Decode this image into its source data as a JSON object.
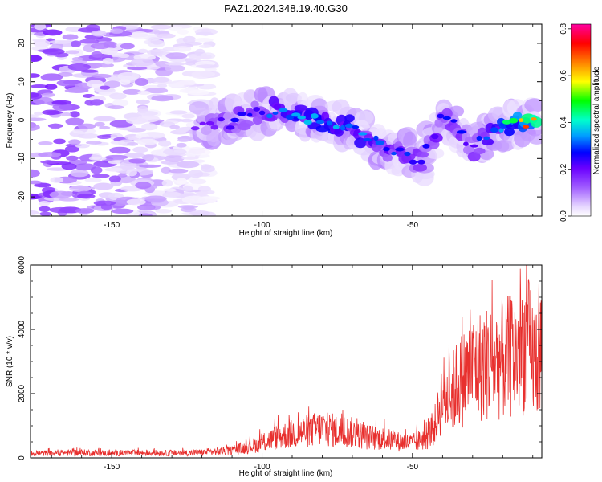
{
  "title": "PAZ1.2024.348.19.40.G30",
  "chart_data": [
    {
      "type": "heatmap",
      "title": "PAZ1.2024.348.19.40.G30",
      "xlabel": "Height of straight line (km)",
      "ylabel": "Frequency (Hz)",
      "xlim": [
        -177,
        -7
      ],
      "ylim": [
        -25,
        25
      ],
      "xticks": [
        -150,
        -100,
        -50
      ],
      "yticks": [
        -20,
        -10,
        0,
        10,
        20
      ],
      "colorbar": {
        "label": "Normalized spectral amplitude",
        "range": [
          0,
          0.82
        ],
        "ticks": [
          0.0,
          0.2,
          0.4,
          0.6,
          0.8
        ],
        "colormap": [
          "#ffffff",
          "#e6d6ff",
          "#a05cff",
          "#6a00ff",
          "#0000ff",
          "#00a0ff",
          "#00ffcc",
          "#00ff00",
          "#ffff00",
          "#ff8000",
          "#ff0000",
          "#ff00a0"
        ]
      },
      "ridge": [
        {
          "x": -122,
          "y": -1.5,
          "amp": 0.18
        },
        {
          "x": -112,
          "y": -1.0,
          "amp": 0.25
        },
        {
          "x": -103,
          "y": 1.5,
          "amp": 0.28
        },
        {
          "x": -95,
          "y": 2.5,
          "amp": 0.35
        },
        {
          "x": -88,
          "y": 1.0,
          "amp": 0.38
        },
        {
          "x": -80,
          "y": 0.0,
          "amp": 0.4
        },
        {
          "x": -72,
          "y": -1.5,
          "amp": 0.38
        },
        {
          "x": -66,
          "y": -4.0,
          "amp": 0.35
        },
        {
          "x": -60,
          "y": -7.0,
          "amp": 0.33
        },
        {
          "x": -52,
          "y": -9.0,
          "amp": 0.3
        },
        {
          "x": -47,
          "y": -11.0,
          "amp": 0.25
        },
        {
          "x": -40,
          "y": 1.0,
          "amp": 0.3
        },
        {
          "x": -35,
          "y": -2.0,
          "amp": 0.28
        },
        {
          "x": -30,
          "y": -8.0,
          "amp": 0.25
        },
        {
          "x": -24,
          "y": -3.0,
          "amp": 0.35
        },
        {
          "x": -18,
          "y": -1.5,
          "amp": 0.5
        },
        {
          "x": -12,
          "y": -1.0,
          "amp": 0.65
        },
        {
          "x": -8,
          "y": 0.0,
          "amp": 0.8
        }
      ]
    },
    {
      "type": "line",
      "xlabel": "Height of straight line (km)",
      "ylabel": "SNR (10 * v/v)",
      "xlim": [
        -177,
        -7
      ],
      "ylim": [
        0,
        6000
      ],
      "xticks": [
        -150,
        -100,
        -50
      ],
      "yticks": [
        0,
        2000,
        4000,
        6000
      ],
      "series": [
        {
          "color": "#e8302e",
          "x": [
            -177,
            -170,
            -160,
            -150,
            -140,
            -130,
            -120,
            -110,
            -105,
            -100,
            -95,
            -90,
            -85,
            -80,
            -75,
            -70,
            -65,
            -60,
            -55,
            -50,
            -45,
            -42,
            -40,
            -38,
            -35,
            -30,
            -25,
            -20,
            -15,
            -12,
            -10,
            -7
          ],
          "y": [
            150,
            160,
            180,
            150,
            170,
            160,
            180,
            250,
            350,
            500,
            700,
            800,
            900,
            1000,
            900,
            850,
            700,
            650,
            550,
            500,
            700,
            1200,
            2200,
            2000,
            2500,
            3000,
            3200,
            3300,
            3500,
            3900,
            3400,
            3600
          ]
        }
      ]
    }
  ]
}
